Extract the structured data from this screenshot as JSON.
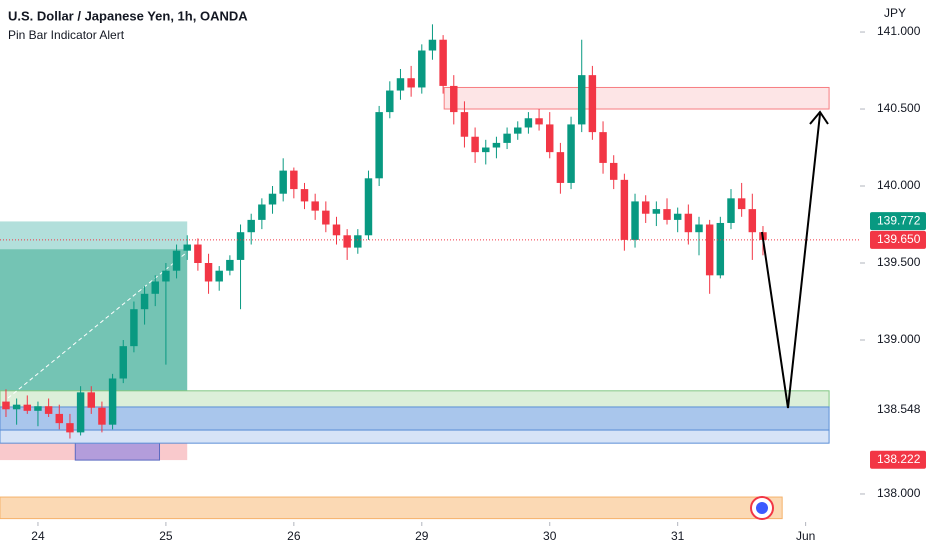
{
  "chart_data": {
    "type": "candlestick",
    "title": "U.S. Dollar / Japanese Yen, 1h, OANDA",
    "subtitle": "Pin Bar Indicator Alert",
    "currency": "JPY",
    "up_color": "#089981",
    "down_color": "#f23645",
    "grid": false,
    "ylim": [
      137.831,
      141.208
    ],
    "xlim": [
      -0.56,
      80.1
    ],
    "yticks": [
      {
        "value": 141,
        "label": "141.000"
      },
      {
        "value": 140.5,
        "label": "140.500"
      },
      {
        "value": 140,
        "label": "140.000"
      },
      {
        "value": 139.5,
        "label": "139.500"
      },
      {
        "value": 139,
        "label": "139.000"
      },
      {
        "value": 138,
        "label": "138.000"
      }
    ],
    "xticks": [
      {
        "value": 3,
        "label": "24"
      },
      {
        "value": 15,
        "label": "25"
      },
      {
        "value": 27,
        "label": "26"
      },
      {
        "value": 39,
        "label": "29"
      },
      {
        "value": 51,
        "label": "30"
      },
      {
        "value": 63,
        "label": "31"
      },
      {
        "value": 75,
        "label": "Jun"
      }
    ],
    "open": [
      138.6,
      138.55,
      138.58,
      138.54,
      138.57,
      138.52,
      138.46,
      138.4,
      138.66,
      138.56,
      138.45,
      138.75,
      138.96,
      139.2,
      139.3,
      139.38,
      139.45,
      139.58,
      139.62,
      139.5,
      139.38,
      139.45,
      139.52,
      139.7,
      139.78,
      139.88,
      139.95,
      140.1,
      139.98,
      139.9,
      139.84,
      139.75,
      139.68,
      139.6,
      139.68,
      140.05,
      140.48,
      140.62,
      140.7,
      140.64,
      140.88,
      140.95,
      140.65,
      140.48,
      140.32,
      140.22,
      140.25,
      140.28,
      140.34,
      140.38,
      140.44,
      140.4,
      140.22,
      140.02,
      140.4,
      140.72,
      140.35,
      140.15,
      140.04,
      139.65,
      139.9,
      139.82,
      139.85,
      139.78,
      139.82,
      139.7,
      139.75,
      139.42,
      139.76,
      139.92,
      139.85,
      139.7
    ],
    "high": [
      138.68,
      138.62,
      138.64,
      138.6,
      138.62,
      138.58,
      138.52,
      138.7,
      138.7,
      138.6,
      138.78,
      139.0,
      139.25,
      139.35,
      139.42,
      139.5,
      139.62,
      139.68,
      139.66,
      139.56,
      139.48,
      139.55,
      139.75,
      139.82,
      139.92,
      140.0,
      140.18,
      140.12,
      140.02,
      139.95,
      139.9,
      139.8,
      139.72,
      139.72,
      140.1,
      140.52,
      140.68,
      140.76,
      140.78,
      140.92,
      141.05,
      140.98,
      140.72,
      140.55,
      140.38,
      140.3,
      140.32,
      140.38,
      140.42,
      140.48,
      140.5,
      140.48,
      140.28,
      140.45,
      140.95,
      140.78,
      140.42,
      140.2,
      140.08,
      139.95,
      139.94,
      139.9,
      139.92,
      139.86,
      139.88,
      139.8,
      139.78,
      139.8,
      139.98,
      140.02,
      139.95,
      139.74
    ],
    "low": [
      138.5,
      138.45,
      138.52,
      138.44,
      138.5,
      138.42,
      138.36,
      138.38,
      138.52,
      138.4,
      138.42,
      138.72,
      138.92,
      139.1,
      139.22,
      138.84,
      139.4,
      139.52,
      139.45,
      139.3,
      139.32,
      139.42,
      139.2,
      139.62,
      139.72,
      139.82,
      139.9,
      139.92,
      139.85,
      139.78,
      139.7,
      139.62,
      139.52,
      139.56,
      139.65,
      140.0,
      140.44,
      140.56,
      140.58,
      140.6,
      140.82,
      140.6,
      140.4,
      140.25,
      140.15,
      140.14,
      140.18,
      140.24,
      140.3,
      140.34,
      140.36,
      140.18,
      139.95,
      139.98,
      140.35,
      140.3,
      140.08,
      139.98,
      139.58,
      139.6,
      139.76,
      139.74,
      139.75,
      139.7,
      139.62,
      139.55,
      139.3,
      139.4,
      139.72,
      139.8,
      139.52,
      139.55
    ],
    "close": [
      138.55,
      138.58,
      138.54,
      138.57,
      138.52,
      138.46,
      138.4,
      138.66,
      138.56,
      138.45,
      138.75,
      138.96,
      139.2,
      139.3,
      139.38,
      139.45,
      139.58,
      139.62,
      139.5,
      139.38,
      139.45,
      139.52,
      139.7,
      139.78,
      139.88,
      139.95,
      140.1,
      139.98,
      139.9,
      139.84,
      139.75,
      139.68,
      139.6,
      139.68,
      140.05,
      140.48,
      140.62,
      140.7,
      140.64,
      140.88,
      140.95,
      140.65,
      140.48,
      140.32,
      140.22,
      140.25,
      140.28,
      140.34,
      140.38,
      140.44,
      140.4,
      140.22,
      140.02,
      140.4,
      140.72,
      140.35,
      140.15,
      140.04,
      139.65,
      139.9,
      139.82,
      139.85,
      139.78,
      139.82,
      139.7,
      139.75,
      139.42,
      139.76,
      139.92,
      139.85,
      139.7,
      139.65
    ],
    "zones": [
      {
        "x0": -0.56,
        "x1": 17,
        "y0": 139.59,
        "y1": 139.77,
        "fill": "#b2dfdb"
      },
      {
        "x0": -0.56,
        "x1": 17,
        "y0": 138.565,
        "y1": 139.59,
        "fill": "#74c4b4"
      },
      {
        "x0": -0.56,
        "x1": 17,
        "y0": 138.22,
        "y1": 138.565,
        "fill": "#f9c9cc"
      },
      {
        "x0": 6.5,
        "x1": 14.4,
        "y0": 138.22,
        "y1": 138.435,
        "fill": "#b39ddb",
        "stroke": "#5c6bc0"
      },
      {
        "x0": 41.1,
        "x1": 77.2,
        "y0": 140.5,
        "y1": 140.64,
        "fill": "#fde5e6",
        "stroke": "#f77c80"
      },
      {
        "x0": -0.56,
        "x1": 77.2,
        "y0": 138.565,
        "y1": 138.67,
        "fill": "#dcefd9",
        "stroke": "#81c784"
      },
      {
        "x0": -0.56,
        "x1": 77.2,
        "y0": 138.415,
        "y1": 138.565,
        "fill": "#a9c6ec",
        "stroke": "#5b8fd6"
      },
      {
        "x0": -0.56,
        "x1": 77.2,
        "y0": 138.33,
        "y1": 138.415,
        "fill": "#d6e3f7",
        "stroke": "#5b8fd6"
      },
      {
        "x0": -0.56,
        "x1": 72.8,
        "y0": 137.84,
        "y1": 137.98,
        "fill": "#fbd9b4",
        "stroke": "#f5b26b"
      }
    ],
    "price_labels": [
      {
        "value": 139.772,
        "label": "139.772",
        "background": "#089981"
      },
      {
        "value": 139.65,
        "label": "139.650",
        "background": "#f23645",
        "line": true
      },
      {
        "value": 138.548,
        "label": "138.548"
      },
      {
        "value": 138.222,
        "label": "138.222",
        "background": "#f23645"
      }
    ]
  }
}
